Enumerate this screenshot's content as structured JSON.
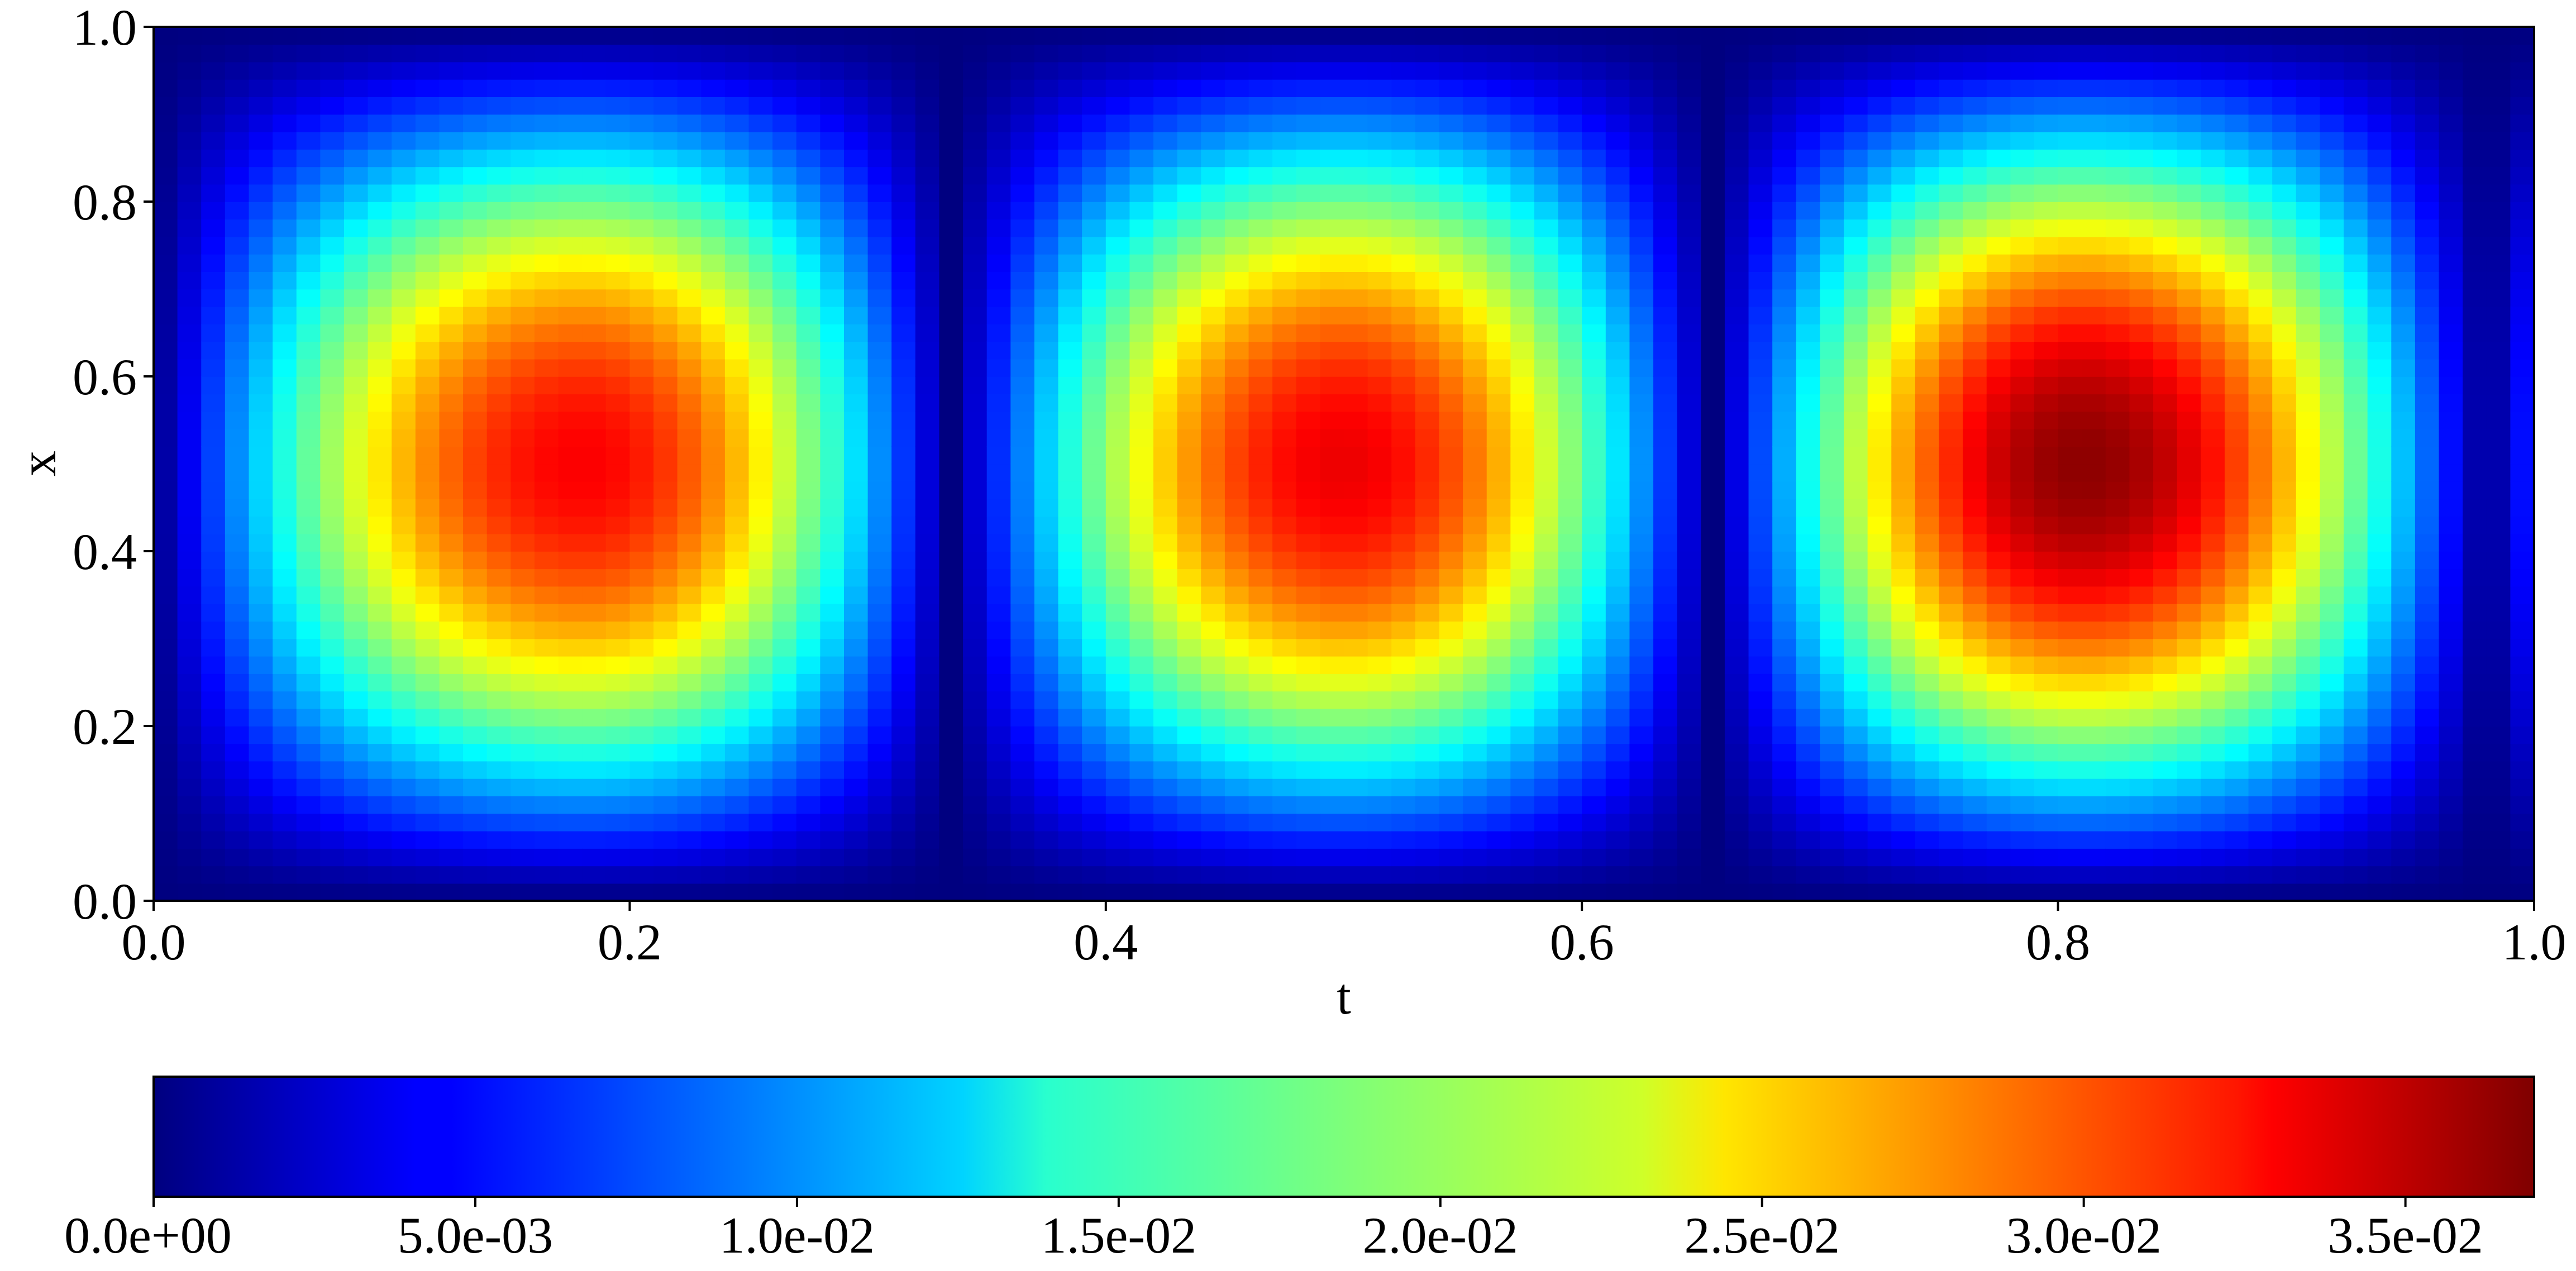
{
  "chart_data": {
    "type": "heatmap",
    "title": "",
    "xlabel": "t",
    "ylabel": "x",
    "xlim": [
      0.0,
      1.0
    ],
    "ylim": [
      0.0,
      1.0
    ],
    "x_ticks": [
      0.0,
      0.2,
      0.4,
      0.6,
      0.8,
      1.0
    ],
    "x_tick_labels": [
      "0.0",
      "0.2",
      "0.4",
      "0.6",
      "0.8",
      "1.0"
    ],
    "y_ticks": [
      0.0,
      0.2,
      0.4,
      0.6,
      0.8,
      1.0
    ],
    "y_tick_labels": [
      "0.0",
      "0.2",
      "0.4",
      "0.6",
      "0.8",
      "1.0"
    ],
    "grid": false,
    "colormap": "jet",
    "colorbar": {
      "orientation": "horizontal",
      "placement": "bottom",
      "range": [
        0.0,
        0.037
      ],
      "ticks": [
        0.0,
        0.005,
        0.01,
        0.015,
        0.02,
        0.025,
        0.03,
        0.035
      ],
      "tick_labels": [
        "0.0e+00",
        "5.0e-03",
        "1.0e-02",
        "1.5e-02",
        "2.0e-02",
        "2.5e-02",
        "3.0e-02",
        "3.5e-02"
      ]
    },
    "grid_resolution": {
      "t_cells": 100,
      "x_cells": 50
    },
    "value_description": "Three elongated hot spots centred at x = 0.5 with peaks near t = 0.18, t = 0.50 and t = 0.81; value falls to ~0 near t = 0, 0.33, 0.65, 0.98 and at x = 0 and x = 1.",
    "peaks": [
      {
        "t": 0.18,
        "x": 0.5,
        "value": 0.0325
      },
      {
        "t": 0.5,
        "x": 0.5,
        "value": 0.033
      },
      {
        "t": 0.81,
        "x": 0.5,
        "value": 0.0365
      }
    ],
    "zero_lines_t": [
      0.0,
      0.335,
      0.655,
      0.98
    ]
  }
}
